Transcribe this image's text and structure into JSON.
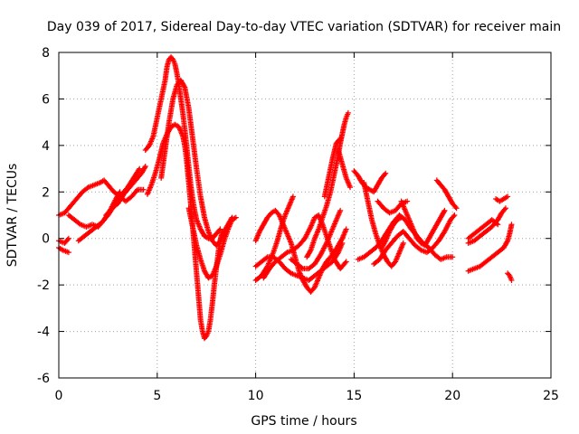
{
  "chart_data": {
    "type": "scatter",
    "title": "Day 039 of 2017, Sidereal Day-to-day VTEC variation (SDTVAR) for receiver main",
    "xlabel": "GPS time / hours",
    "ylabel": "SDTVAR / TECUs",
    "xlim": [
      0,
      25
    ],
    "ylim": [
      -6,
      8
    ],
    "xticks": [
      "0",
      "5",
      "10",
      "15",
      "20",
      "25"
    ],
    "yticks": [
      "-6",
      "-4",
      "-2",
      "0",
      "2",
      "4",
      "6",
      "8"
    ],
    "grid": true,
    "marker": "+",
    "color": "#ff0000",
    "tracks": [
      [
        [
          0.0,
          1.0
        ],
        [
          0.3,
          1.1
        ],
        [
          0.6,
          1.4
        ],
        [
          0.9,
          1.7
        ],
        [
          1.2,
          2.0
        ],
        [
          1.5,
          2.2
        ],
        [
          1.8,
          2.3
        ],
        [
          2.1,
          2.4
        ],
        [
          2.3,
          2.5
        ],
        [
          2.5,
          2.3
        ],
        [
          2.8,
          2.0
        ],
        [
          3.1,
          1.8
        ],
        [
          3.4,
          1.6
        ],
        [
          3.7,
          1.8
        ],
        [
          4.0,
          2.1
        ],
        [
          4.3,
          2.1
        ]
      ],
      [
        [
          0.0,
          -0.4
        ],
        [
          0.2,
          -0.5
        ],
        [
          0.5,
          -0.6
        ]
      ],
      [
        [
          0.0,
          -0.1
        ],
        [
          0.3,
          -0.2
        ],
        [
          0.5,
          0.0
        ]
      ],
      [
        [
          0.5,
          1.0
        ],
        [
          0.8,
          0.8
        ],
        [
          1.1,
          0.6
        ],
        [
          1.4,
          0.5
        ],
        [
          1.7,
          0.6
        ],
        [
          2.0,
          0.5
        ],
        [
          2.3,
          0.8
        ],
        [
          2.6,
          1.2
        ],
        [
          2.9,
          1.7
        ],
        [
          3.1,
          2.0
        ]
      ],
      [
        [
          1.0,
          -0.1
        ],
        [
          1.3,
          0.1
        ],
        [
          1.6,
          0.3
        ],
        [
          1.9,
          0.5
        ],
        [
          2.2,
          0.7
        ],
        [
          2.5,
          1.0
        ],
        [
          2.8,
          1.4
        ],
        [
          3.0,
          1.7
        ],
        [
          3.3,
          2.0
        ],
        [
          3.5,
          2.2
        ],
        [
          3.8,
          2.6
        ],
        [
          4.1,
          3.0
        ]
      ],
      [
        [
          2.4,
          1.0
        ],
        [
          2.7,
          1.3
        ],
        [
          3.0,
          1.5
        ],
        [
          3.3,
          1.9
        ],
        [
          3.6,
          2.2
        ],
        [
          3.9,
          2.5
        ],
        [
          4.2,
          2.8
        ],
        [
          4.4,
          3.1
        ]
      ],
      [
        [
          4.4,
          3.8
        ],
        [
          4.6,
          4.0
        ],
        [
          4.8,
          4.4
        ],
        [
          5.0,
          5.2
        ],
        [
          5.2,
          6.0
        ],
        [
          5.4,
          6.8
        ],
        [
          5.5,
          7.4
        ],
        [
          5.6,
          7.7
        ],
        [
          5.7,
          7.8
        ],
        [
          5.8,
          7.7
        ],
        [
          5.9,
          7.5
        ],
        [
          6.0,
          7.1
        ],
        [
          6.1,
          6.6
        ],
        [
          6.2,
          6.0
        ],
        [
          6.3,
          5.4
        ],
        [
          6.4,
          4.7
        ],
        [
          6.5,
          3.9
        ],
        [
          6.6,
          3.1
        ],
        [
          6.7,
          2.3
        ],
        [
          6.8,
          1.7
        ],
        [
          6.9,
          1.2
        ],
        [
          7.0,
          0.8
        ],
        [
          7.2,
          0.4
        ],
        [
          7.4,
          0.1
        ],
        [
          7.6,
          0.0
        ],
        [
          7.8,
          0.0
        ],
        [
          8.0,
          0.2
        ],
        [
          8.2,
          0.4
        ]
      ],
      [
        [
          4.5,
          1.9
        ],
        [
          4.7,
          2.3
        ],
        [
          4.9,
          2.8
        ],
        [
          5.1,
          3.4
        ],
        [
          5.3,
          4.1
        ],
        [
          5.5,
          4.5
        ],
        [
          5.7,
          4.8
        ],
        [
          5.9,
          4.9
        ],
        [
          6.1,
          4.8
        ],
        [
          6.3,
          4.4
        ],
        [
          6.4,
          4.0
        ],
        [
          6.5,
          3.3
        ],
        [
          6.6,
          2.4
        ],
        [
          6.7,
          1.5
        ],
        [
          6.8,
          0.5
        ],
        [
          6.9,
          -0.5
        ],
        [
          7.0,
          -1.5
        ],
        [
          7.1,
          -2.5
        ],
        [
          7.2,
          -3.5
        ],
        [
          7.3,
          -4.0
        ],
        [
          7.4,
          -4.3
        ],
        [
          7.5,
          -4.2
        ],
        [
          7.6,
          -4.0
        ],
        [
          7.7,
          -3.5
        ],
        [
          7.8,
          -2.8
        ],
        [
          7.9,
          -2.0
        ],
        [
          8.0,
          -1.3
        ],
        [
          8.1,
          -0.6
        ],
        [
          8.2,
          -0.1
        ],
        [
          8.3,
          0.3
        ]
      ],
      [
        [
          5.2,
          2.6
        ],
        [
          5.4,
          3.8
        ],
        [
          5.6,
          5.0
        ],
        [
          5.8,
          6.0
        ],
        [
          6.0,
          6.6
        ],
        [
          6.2,
          6.8
        ],
        [
          6.4,
          6.5
        ],
        [
          6.6,
          5.6
        ],
        [
          6.8,
          4.3
        ],
        [
          7.0,
          3.0
        ],
        [
          7.2,
          1.8
        ],
        [
          7.4,
          0.9
        ],
        [
          7.6,
          0.3
        ],
        [
          7.8,
          -0.1
        ],
        [
          8.0,
          -0.3
        ],
        [
          8.2,
          -0.1
        ],
        [
          8.4,
          0.3
        ],
        [
          8.6,
          0.6
        ],
        [
          8.8,
          0.9
        ]
      ],
      [
        [
          6.6,
          1.3
        ],
        [
          6.8,
          0.5
        ],
        [
          7.0,
          -0.3
        ],
        [
          7.2,
          -0.9
        ],
        [
          7.4,
          -1.4
        ],
        [
          7.6,
          -1.7
        ],
        [
          7.8,
          -1.6
        ],
        [
          8.0,
          -1.2
        ],
        [
          8.2,
          -0.7
        ],
        [
          8.4,
          -0.1
        ],
        [
          8.6,
          0.4
        ],
        [
          8.8,
          0.8
        ],
        [
          9.0,
          0.9
        ]
      ],
      [
        [
          10.0,
          -0.1
        ],
        [
          10.2,
          0.3
        ],
        [
          10.4,
          0.6
        ],
        [
          10.6,
          0.9
        ],
        [
          10.8,
          1.1
        ],
        [
          11.0,
          1.2
        ],
        [
          11.2,
          1.0
        ],
        [
          11.4,
          0.6
        ],
        [
          11.6,
          0.2
        ],
        [
          11.8,
          -0.2
        ],
        [
          12.0,
          -0.8
        ],
        [
          12.2,
          -1.4
        ],
        [
          12.4,
          -1.8
        ],
        [
          12.6,
          -2.1
        ],
        [
          12.8,
          -2.3
        ],
        [
          13.0,
          -2.1
        ],
        [
          13.2,
          -1.7
        ],
        [
          13.4,
          -1.3
        ],
        [
          13.6,
          -1.0
        ],
        [
          13.8,
          -0.8
        ],
        [
          14.0,
          -0.6
        ],
        [
          14.2,
          -0.3
        ],
        [
          14.4,
          0.0
        ],
        [
          14.6,
          0.4
        ]
      ],
      [
        [
          10.0,
          -1.8
        ],
        [
          10.3,
          -1.6
        ],
        [
          10.6,
          -1.2
        ],
        [
          10.9,
          -0.6
        ],
        [
          11.1,
          -0.1
        ],
        [
          11.3,
          0.5
        ],
        [
          11.5,
          1.0
        ],
        [
          11.7,
          1.4
        ],
        [
          11.9,
          1.8
        ]
      ],
      [
        [
          10.0,
          -1.2
        ],
        [
          10.3,
          -1.0
        ],
        [
          10.6,
          -0.8
        ],
        [
          10.9,
          -0.8
        ],
        [
          11.2,
          -1.0
        ],
        [
          11.5,
          -1.3
        ],
        [
          11.8,
          -1.5
        ],
        [
          12.1,
          -1.6
        ],
        [
          12.4,
          -1.7
        ],
        [
          12.7,
          -1.8
        ],
        [
          13.0,
          -1.6
        ],
        [
          13.3,
          -1.4
        ],
        [
          13.6,
          -1.2
        ],
        [
          13.9,
          -1.0
        ],
        [
          14.2,
          -0.6
        ],
        [
          14.4,
          -0.2
        ]
      ],
      [
        [
          10.4,
          -1.7
        ],
        [
          10.7,
          -1.3
        ],
        [
          11.0,
          -1.0
        ],
        [
          11.3,
          -0.8
        ],
        [
          11.6,
          -0.6
        ],
        [
          11.9,
          -0.5
        ],
        [
          12.2,
          -0.3
        ],
        [
          12.5,
          0.0
        ],
        [
          12.8,
          0.5
        ],
        [
          13.0,
          0.9
        ],
        [
          13.2,
          1.0
        ],
        [
          13.4,
          0.6
        ],
        [
          13.6,
          0.1
        ],
        [
          13.8,
          -0.4
        ],
        [
          14.0,
          -0.9
        ],
        [
          14.3,
          -1.3
        ],
        [
          14.6,
          -1.0
        ]
      ],
      [
        [
          11.8,
          -0.9
        ],
        [
          12.1,
          -1.1
        ],
        [
          12.4,
          -1.3
        ],
        [
          12.7,
          -1.3
        ],
        [
          13.0,
          -1.1
        ],
        [
          13.3,
          -0.7
        ],
        [
          13.6,
          -0.2
        ],
        [
          13.9,
          0.4
        ],
        [
          14.1,
          0.8
        ],
        [
          14.3,
          1.2
        ]
      ],
      [
        [
          12.6,
          -0.8
        ],
        [
          12.8,
          -0.5
        ],
        [
          13.0,
          0.0
        ],
        [
          13.2,
          0.4
        ],
        [
          13.4,
          0.9
        ],
        [
          13.6,
          1.4
        ],
        [
          13.8,
          2.0
        ],
        [
          14.0,
          2.8
        ],
        [
          14.2,
          3.6
        ],
        [
          14.3,
          4.1
        ],
        [
          14.4,
          4.5
        ],
        [
          14.5,
          4.9
        ],
        [
          14.6,
          5.2
        ],
        [
          14.7,
          5.4
        ]
      ],
      [
        [
          13.5,
          1.8
        ],
        [
          13.7,
          2.6
        ],
        [
          13.9,
          3.4
        ],
        [
          14.1,
          4.1
        ],
        [
          14.3,
          4.3
        ]
      ],
      [
        [
          14.2,
          3.8
        ],
        [
          14.4,
          3.2
        ],
        [
          14.6,
          2.6
        ],
        [
          14.8,
          2.2
        ]
      ],
      [
        [
          15.0,
          2.9
        ],
        [
          15.2,
          2.7
        ],
        [
          15.4,
          2.4
        ],
        [
          15.6,
          2.2
        ],
        [
          15.8,
          2.1
        ],
        [
          16.0,
          2.0
        ],
        [
          16.2,
          2.3
        ],
        [
          16.4,
          2.6
        ],
        [
          16.6,
          2.8
        ]
      ],
      [
        [
          15.5,
          2.4
        ],
        [
          15.7,
          1.6
        ],
        [
          15.9,
          0.8
        ],
        [
          16.1,
          0.2
        ],
        [
          16.3,
          -0.3
        ],
        [
          16.5,
          -0.7
        ],
        [
          16.7,
          -1.0
        ],
        [
          16.9,
          -1.2
        ],
        [
          17.1,
          -1.0
        ],
        [
          17.3,
          -0.6
        ],
        [
          17.5,
          -0.2
        ]
      ],
      [
        [
          15.2,
          -0.9
        ],
        [
          15.5,
          -0.8
        ],
        [
          15.8,
          -0.6
        ],
        [
          16.1,
          -0.4
        ],
        [
          16.4,
          -0.1
        ],
        [
          16.7,
          0.3
        ],
        [
          17.0,
          0.7
        ],
        [
          17.3,
          1.0
        ],
        [
          17.6,
          0.8
        ],
        [
          17.9,
          0.4
        ],
        [
          18.2,
          0.1
        ],
        [
          18.5,
          -0.2
        ],
        [
          18.8,
          -0.4
        ],
        [
          19.1,
          -0.7
        ],
        [
          19.4,
          -0.9
        ],
        [
          19.7,
          -0.8
        ],
        [
          20.0,
          -0.8
        ]
      ],
      [
        [
          16.0,
          -1.1
        ],
        [
          16.3,
          -0.9
        ],
        [
          16.6,
          -0.5
        ],
        [
          16.9,
          -0.2
        ],
        [
          17.2,
          0.1
        ],
        [
          17.5,
          0.3
        ],
        [
          17.8,
          0.0
        ],
        [
          18.1,
          -0.3
        ],
        [
          18.4,
          -0.5
        ],
        [
          18.7,
          -0.6
        ],
        [
          19.0,
          -0.4
        ],
        [
          19.3,
          -0.1
        ],
        [
          19.6,
          0.3
        ],
        [
          19.9,
          0.8
        ],
        [
          20.1,
          1.0
        ]
      ],
      [
        [
          16.2,
          1.6
        ],
        [
          16.5,
          1.3
        ],
        [
          16.8,
          1.1
        ],
        [
          17.1,
          1.2
        ],
        [
          17.4,
          1.5
        ],
        [
          17.7,
          1.6
        ]
      ],
      [
        [
          16.4,
          -0.4
        ],
        [
          16.6,
          -0.1
        ],
        [
          16.8,
          0.3
        ],
        [
          17.0,
          0.6
        ],
        [
          17.2,
          0.8
        ],
        [
          17.4,
          0.9
        ]
      ],
      [
        [
          17.4,
          1.6
        ],
        [
          17.6,
          1.2
        ],
        [
          17.8,
          0.8
        ],
        [
          18.0,
          0.4
        ],
        [
          18.2,
          0.0
        ],
        [
          18.4,
          -0.2
        ],
        [
          18.6,
          -0.3
        ],
        [
          18.8,
          0.0
        ],
        [
          19.0,
          0.3
        ],
        [
          19.2,
          0.6
        ],
        [
          19.4,
          0.9
        ],
        [
          19.6,
          1.2
        ]
      ],
      [
        [
          19.2,
          2.5
        ],
        [
          19.4,
          2.3
        ],
        [
          19.6,
          2.1
        ],
        [
          19.8,
          1.8
        ],
        [
          20.0,
          1.5
        ],
        [
          20.2,
          1.3
        ]
      ],
      [
        [
          20.8,
          -0.2
        ],
        [
          21.1,
          -0.1
        ],
        [
          21.4,
          0.1
        ],
        [
          21.7,
          0.3
        ],
        [
          22.0,
          0.5
        ],
        [
          22.3,
          0.8
        ],
        [
          22.5,
          1.1
        ],
        [
          22.7,
          1.3
        ]
      ],
      [
        [
          20.8,
          -1.4
        ],
        [
          21.1,
          -1.3
        ],
        [
          21.4,
          -1.2
        ],
        [
          21.7,
          -1.0
        ],
        [
          22.0,
          -0.8
        ],
        [
          22.3,
          -0.6
        ],
        [
          22.6,
          -0.4
        ],
        [
          22.8,
          -0.1
        ],
        [
          22.9,
          0.2
        ],
        [
          23.0,
          0.6
        ]
      ],
      [
        [
          20.8,
          0.0
        ],
        [
          21.1,
          0.2
        ],
        [
          21.4,
          0.4
        ],
        [
          21.7,
          0.6
        ],
        [
          22.0,
          0.8
        ],
        [
          22.3,
          0.6
        ]
      ],
      [
        [
          22.2,
          1.7
        ],
        [
          22.4,
          1.6
        ],
        [
          22.6,
          1.7
        ],
        [
          22.8,
          1.8
        ]
      ],
      [
        [
          22.8,
          -1.5
        ],
        [
          22.9,
          -1.6
        ],
        [
          23.0,
          -1.8
        ]
      ]
    ]
  }
}
